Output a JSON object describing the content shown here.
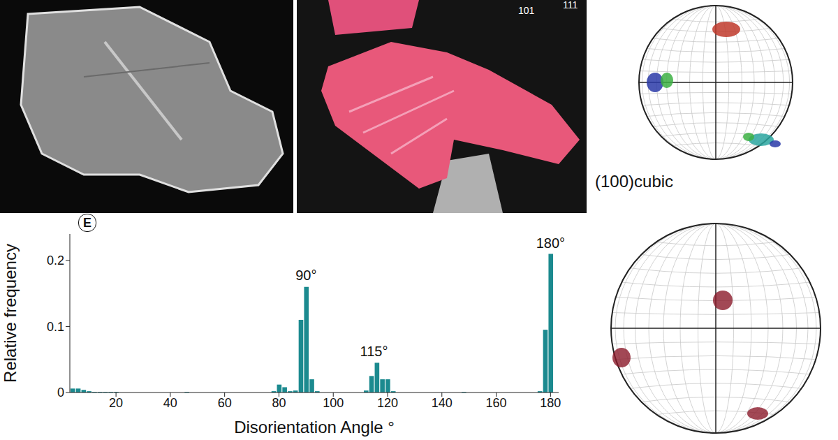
{
  "chart_data": {
    "type": "histogram",
    "panel": "E",
    "bins": [
      3,
      5,
      7,
      9,
      11,
      13,
      15,
      17,
      19,
      21,
      23,
      25,
      27,
      29,
      31,
      33,
      35,
      37,
      39,
      41,
      43,
      45,
      47,
      49,
      51,
      53,
      55,
      57,
      59,
      61,
      63,
      65,
      67,
      69,
      71,
      73,
      75,
      77,
      79,
      81,
      83,
      85,
      87,
      89,
      91,
      93,
      95,
      97,
      99,
      101,
      103,
      105,
      107,
      109,
      111,
      113,
      115,
      117,
      119,
      121,
      123,
      125,
      127,
      129,
      131,
      133,
      135,
      137,
      139,
      141,
      143,
      145,
      147,
      149,
      151,
      153,
      155,
      157,
      159,
      161,
      163,
      165,
      167,
      169,
      171,
      173,
      175,
      177,
      179,
      181,
      183
    ],
    "values": [
      0.006,
      0.006,
      0.004,
      0.002,
      0.001,
      0.001,
      0.001,
      0.001,
      0.001,
      0,
      0,
      0,
      0,
      0,
      0,
      0,
      0,
      0,
      0,
      0,
      0,
      0.001,
      0,
      0,
      0,
      0,
      0,
      0,
      0,
      0,
      0,
      0,
      0,
      0,
      0,
      0,
      0,
      0.002,
      0.012,
      0.008,
      0.002,
      0.003,
      0.11,
      0.16,
      0.02,
      0.002,
      0,
      0,
      0,
      0,
      0,
      0,
      0,
      0,
      0.003,
      0.025,
      0.045,
      0.02,
      0.02,
      0.002,
      0,
      0,
      0,
      0,
      0,
      0,
      0,
      0,
      0,
      0,
      0,
      0,
      0.001,
      0,
      0,
      0,
      0,
      0,
      0,
      0,
      0,
      0,
      0,
      0,
      0,
      0,
      0.002,
      0.095,
      0.21,
      0
    ],
    "color": "#1b8a8f",
    "xlim": [
      3,
      183
    ],
    "xticks": [
      20,
      40,
      60,
      80,
      100,
      120,
      140,
      160,
      180
    ],
    "ylim": [
      0,
      0.24
    ],
    "yticks": [
      0,
      0.1,
      0.2
    ],
    "x_label": "Disorientation Angle °",
    "y_label": "Relative frequency",
    "annotations": [
      {
        "text": "90°",
        "x": 90,
        "y": 0.178
      },
      {
        "text": "115°",
        "x": 115,
        "y": 0.062
      },
      {
        "text": "180°",
        "x": 180,
        "y": 0.226
      }
    ]
  },
  "figure": {
    "ebsd_key_labels": [
      "101",
      "111"
    ],
    "pole_figure_labels": [
      "(100)cubic"
    ]
  }
}
